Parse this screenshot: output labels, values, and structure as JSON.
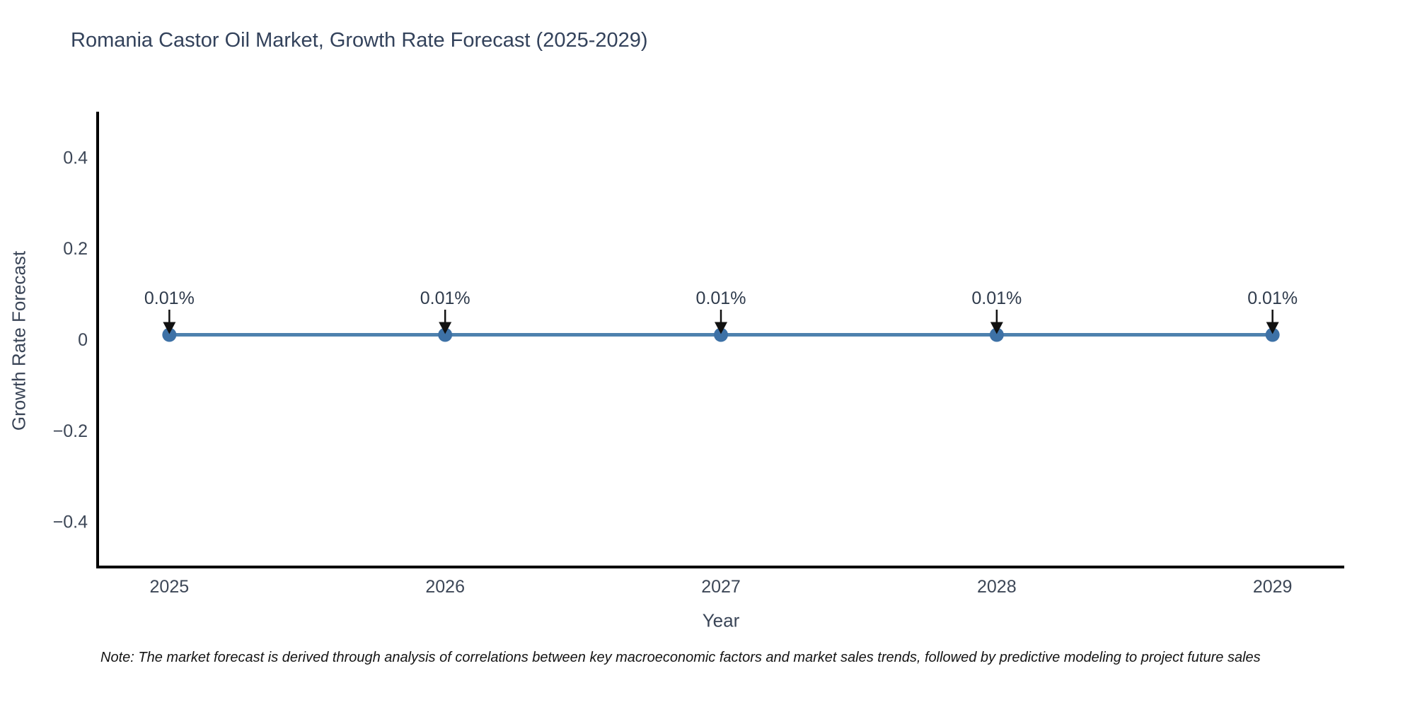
{
  "header": {
    "title": "Romania Castor Oil Market, Growth Rate Forecast (2025-2029)"
  },
  "note": {
    "text": "Note: The market forecast is derived through analysis of correlations between key macroeconomic factors and market sales trends, followed by predictive modeling to project future sales"
  },
  "chart_data": {
    "type": "line",
    "title": "Romania Castor Oil Market, Growth Rate Forecast (2025-2029)",
    "xlabel": "Year",
    "ylabel": "Growth Rate Forecast",
    "x": [
      2025,
      2026,
      2027,
      2028,
      2029
    ],
    "series": [
      {
        "name": "Growth Rate Forecast",
        "values": [
          0.01,
          0.01,
          0.01,
          0.01,
          0.01
        ]
      }
    ],
    "point_labels": [
      "0.01%",
      "0.01%",
      "0.01%",
      "0.01%",
      "0.01%"
    ],
    "xtick_labels": [
      "2025",
      "2026",
      "2027",
      "2028",
      "2029"
    ],
    "yticks": [
      0.4,
      0.2,
      0,
      -0.2,
      -0.4
    ],
    "ytick_labels": [
      "0.4",
      "0.2",
      "0",
      "−0.2",
      "−0.4"
    ],
    "xlim": [
      2024.74,
      2029.26
    ],
    "ylim": [
      -0.5,
      0.5
    ],
    "grid": false,
    "legend": "none",
    "colors": {
      "line": "#4e81ae",
      "marker": "#3d71a6",
      "arrow": "#111111",
      "axis": "#000000",
      "tick_text": "#3d4757",
      "title_text": "#33425b"
    }
  }
}
